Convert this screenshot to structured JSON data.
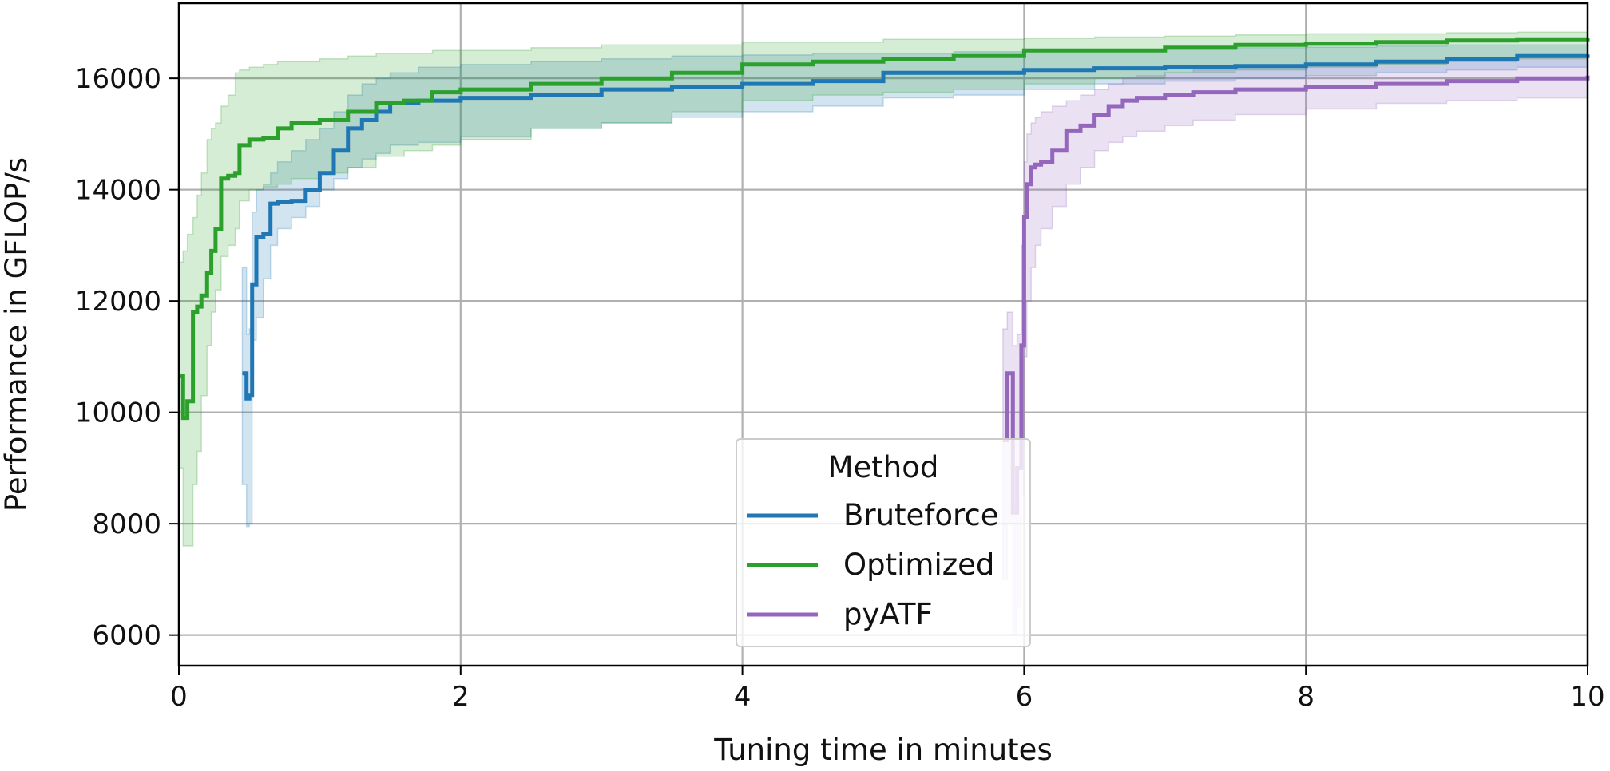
{
  "chart_data": {
    "type": "line",
    "title": "",
    "xlabel": "Tuning time in minutes",
    "ylabel": "Performance in GFLOP/s",
    "xlim": [
      0,
      10
    ],
    "ylim": [
      5450,
      17350
    ],
    "xticks": [
      0,
      2,
      4,
      6,
      8,
      10
    ],
    "yticks": [
      6000,
      8000,
      10000,
      12000,
      14000,
      16000
    ],
    "grid": true,
    "legend": {
      "title": "Method",
      "position": "bottom-center"
    },
    "series": [
      {
        "name": "Bruteforce",
        "color": "#1f77b4",
        "x": [
          0.45,
          0.48,
          0.5,
          0.52,
          0.55,
          0.6,
          0.65,
          0.7,
          0.8,
          0.9,
          1.0,
          1.1,
          1.2,
          1.3,
          1.4,
          1.5,
          1.7,
          2.0,
          2.5,
          3.0,
          3.5,
          4.0,
          4.5,
          5.0,
          5.5,
          6.0,
          6.5,
          7.0,
          7.5,
          8.0,
          8.5,
          9.0,
          9.5,
          10.0
        ],
        "y": [
          10700,
          10250,
          10300,
          12300,
          13150,
          13200,
          13750,
          13780,
          13800,
          14000,
          14300,
          14700,
          15100,
          15250,
          15400,
          15550,
          15600,
          15650,
          15700,
          15800,
          15850,
          15900,
          15950,
          16100,
          16100,
          16150,
          16180,
          16200,
          16220,
          16250,
          16300,
          16350,
          16400,
          16430
        ],
        "lower": [
          8700,
          7950,
          8000,
          11300,
          11700,
          12400,
          13000,
          13300,
          13500,
          13700,
          14000,
          14200,
          14400,
          14550,
          14650,
          14800,
          14850,
          14950,
          15100,
          15200,
          15300,
          15400,
          15500,
          15650,
          15700,
          15800,
          15900,
          15950,
          16000,
          16050,
          16100,
          16150,
          16200,
          16250
        ],
        "upper": [
          12600,
          11400,
          11500,
          13600,
          14000,
          14100,
          14300,
          14500,
          14700,
          14900,
          15100,
          15400,
          15700,
          15900,
          16000,
          16100,
          16200,
          16250,
          16300,
          16350,
          16400,
          16420,
          16450,
          16450,
          16480,
          16500,
          16500,
          16520,
          16550,
          16560,
          16580,
          16600,
          16600,
          16620
        ]
      },
      {
        "name": "Optimized",
        "color": "#2ca02c",
        "x": [
          0.0,
          0.03,
          0.06,
          0.1,
          0.13,
          0.16,
          0.2,
          0.23,
          0.26,
          0.3,
          0.35,
          0.4,
          0.43,
          0.5,
          0.6,
          0.7,
          0.8,
          1.0,
          1.2,
          1.4,
          1.6,
          1.8,
          2.0,
          2.5,
          3.0,
          3.5,
          4.0,
          4.5,
          5.0,
          5.5,
          6.0,
          6.5,
          7.0,
          7.5,
          8.0,
          8.5,
          9.0,
          9.5,
          10.0
        ],
        "y": [
          10650,
          9900,
          10200,
          11800,
          11900,
          12100,
          12500,
          12900,
          13300,
          14200,
          14250,
          14300,
          14800,
          14900,
          14920,
          15100,
          15200,
          15250,
          15400,
          15550,
          15600,
          15750,
          15800,
          15900,
          16000,
          16100,
          16250,
          16300,
          16350,
          16400,
          16500,
          16500,
          16550,
          16600,
          16620,
          16650,
          16680,
          16700,
          16720
        ],
        "lower": [
          9000,
          7600,
          7600,
          8700,
          9300,
          10300,
          11200,
          11800,
          12200,
          12800,
          13000,
          13300,
          13800,
          14000,
          14050,
          14100,
          14200,
          14300,
          14400,
          14600,
          14700,
          14800,
          14900,
          15100,
          15200,
          15400,
          15600,
          15700,
          15750,
          15800,
          15900,
          16000,
          16100,
          16150,
          16200,
          16250,
          16300,
          16350,
          16400
        ],
        "upper": [
          12700,
          12900,
          13200,
          13500,
          13900,
          14300,
          14900,
          15100,
          15200,
          15500,
          15700,
          16100,
          16150,
          16200,
          16250,
          16300,
          16300,
          16350,
          16400,
          16450,
          16450,
          16500,
          16500,
          16550,
          16600,
          16600,
          16650,
          16650,
          16700,
          16700,
          16720,
          16740,
          16760,
          16780,
          16800,
          16800,
          16820,
          16830,
          16850
        ]
      },
      {
        "name": "pyATF",
        "color": "#9467bd",
        "x": [
          5.85,
          5.88,
          5.92,
          5.95,
          5.98,
          6.0,
          6.02,
          6.05,
          6.08,
          6.12,
          6.2,
          6.3,
          6.4,
          6.5,
          6.6,
          6.7,
          6.8,
          7.0,
          7.2,
          7.5,
          8.0,
          8.5,
          9.0,
          9.5,
          10.0
        ],
        "y": [
          9500,
          10700,
          8200,
          9000,
          11200,
          13500,
          14100,
          14400,
          14450,
          14500,
          14700,
          15050,
          15150,
          15350,
          15500,
          15600,
          15650,
          15700,
          15750,
          15800,
          15850,
          15900,
          15950,
          16000,
          16050
        ],
        "lower": [
          7000,
          8000,
          6000,
          6500,
          8500,
          11000,
          12000,
          12600,
          13000,
          13300,
          13700,
          14100,
          14400,
          14700,
          14850,
          14950,
          15050,
          15150,
          15250,
          15350,
          15450,
          15550,
          15600,
          15650,
          15700
        ],
        "upper": [
          11500,
          11800,
          11200,
          11400,
          13000,
          14500,
          15000,
          15200,
          15300,
          15400,
          15500,
          15600,
          15700,
          15800,
          15900,
          16000,
          16050,
          16100,
          16150,
          16200,
          16250,
          16300,
          16350,
          16400,
          16450
        ]
      }
    ]
  }
}
